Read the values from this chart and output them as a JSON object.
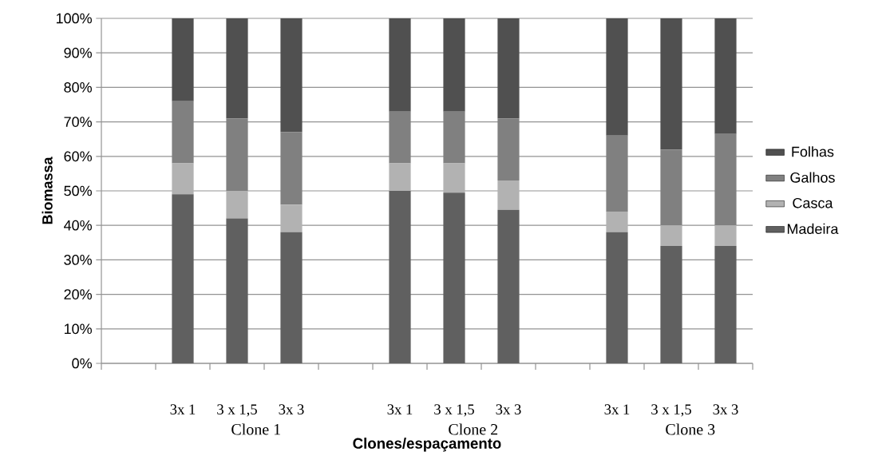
{
  "chart_data": {
    "type": "bar",
    "stacked": true,
    "xlabel": "Clones/espaçamento",
    "ylabel": "Biomassa",
    "categories": [
      null,
      "3x 1",
      "3 x 1,5",
      "3x 3",
      null,
      "3x 1",
      "3 x 1,5",
      "3x 3",
      null,
      "3x 1",
      "3 x 1,5",
      "3x 3"
    ],
    "series": [
      {
        "name": "Madeira",
        "color": "#606060",
        "values": [
          null,
          49,
          42,
          38,
          null,
          50,
          49.5,
          44.5,
          null,
          38,
          34,
          34
        ]
      },
      {
        "name": "Casca",
        "color": "#b2b2b2",
        "values": [
          null,
          9,
          8,
          8,
          null,
          8,
          8.5,
          8.5,
          null,
          6,
          6,
          6
        ]
      },
      {
        "name": "Galhos",
        "color": "#808080",
        "values": [
          null,
          18,
          21,
          21,
          null,
          15,
          15,
          18,
          null,
          22,
          22,
          26.5
        ]
      },
      {
        "name": "Folhas",
        "color": "#505050",
        "values": [
          null,
          24,
          29,
          33,
          null,
          27,
          27,
          29,
          null,
          34,
          38,
          33.5
        ]
      }
    ],
    "ylim": [
      0,
      100
    ],
    "yticks": [
      {
        "value": 0,
        "label": "0%"
      },
      {
        "value": 10,
        "label": "10%"
      },
      {
        "value": 20,
        "label": "20%"
      },
      {
        "value": 30,
        "label": "30%"
      },
      {
        "value": 40,
        "label": "40%"
      },
      {
        "value": 50,
        "label": "50%"
      },
      {
        "value": 60,
        "label": "60%"
      },
      {
        "value": 70,
        "label": "70%"
      },
      {
        "value": 80,
        "label": "80%"
      },
      {
        "value": 90,
        "label": "90%"
      },
      {
        "value": 100,
        "label": "100%"
      }
    ],
    "grid": "y",
    "legend": "right",
    "annotations": [
      "Clone 1",
      "Clone 2",
      "Clone 3"
    ]
  }
}
